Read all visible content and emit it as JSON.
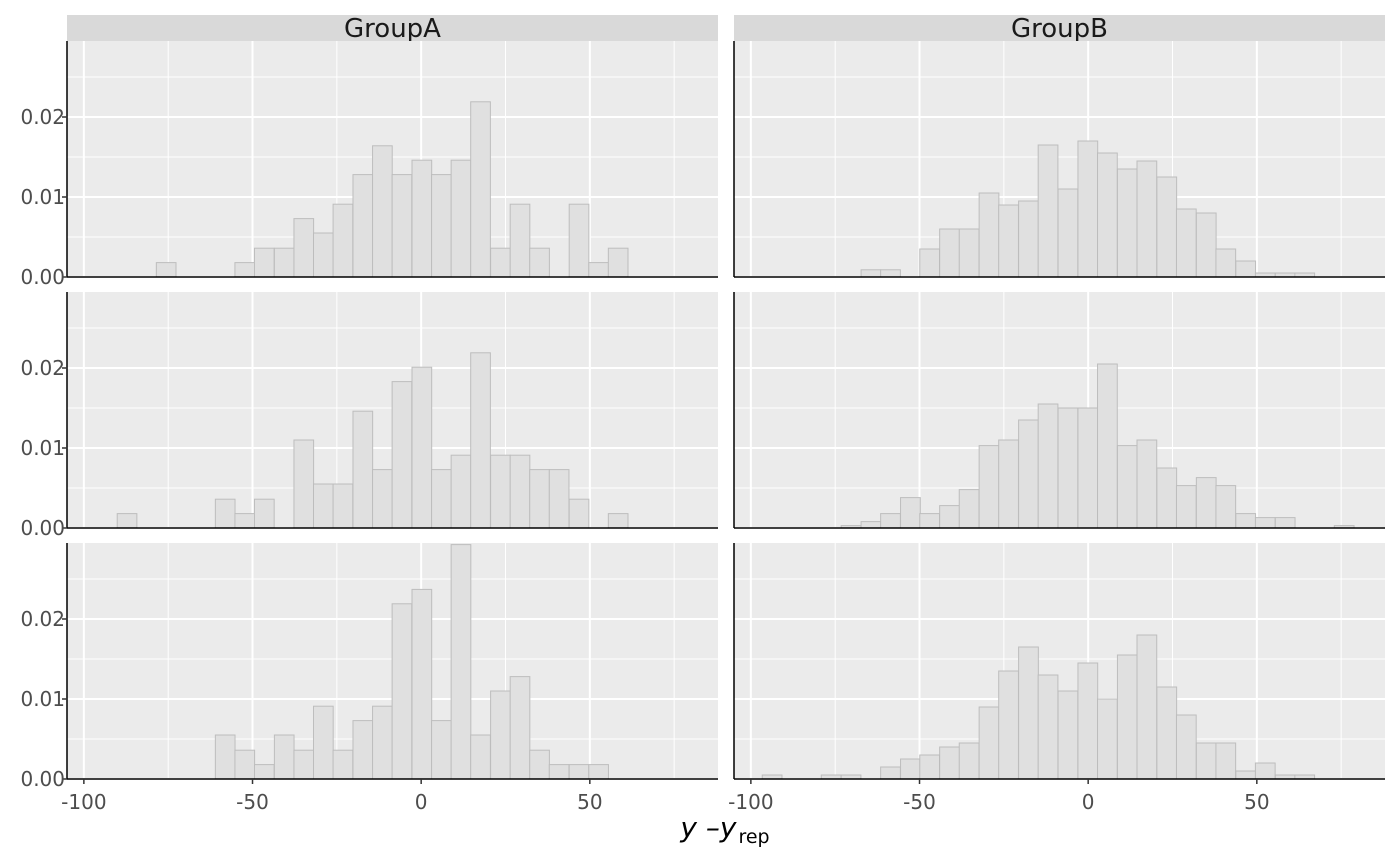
{
  "chart_data": {
    "type": "bar",
    "layout": "facet grid: 3 rows x 2 columns",
    "columns": [
      "GroupA",
      "GroupB"
    ],
    "xlabel": {
      "main": "y –y",
      "sub": "rep"
    },
    "xlim": [
      -105,
      88
    ],
    "ylim": [
      0,
      0.0295
    ],
    "x_ticks": [
      -100,
      -50,
      0,
      50
    ],
    "x_tick_labels": [
      "-100",
      "-50",
      "0",
      "50"
    ],
    "y_ticks": [
      0,
      0.01,
      0.02
    ],
    "y_tick_labels": [
      "0.00",
      "0.01",
      "0.02"
    ],
    "grid": true,
    "bar_fill": "#e0e0e0",
    "bar_stroke": "#bdbdbd",
    "panel_background": "#ebebeb",
    "strip_background": "#d9d9d9",
    "panels": [
      {
        "row": 0,
        "col": 0,
        "group": "GroupA",
        "binwidth": 5.83,
        "bins": [
          {
            "x": -75.6,
            "y": 0.0018
          },
          {
            "x": -52.3,
            "y": 0.0018
          },
          {
            "x": -46.5,
            "y": 0.0036
          },
          {
            "x": -40.6,
            "y": 0.0036
          },
          {
            "x": -34.8,
            "y": 0.0073
          },
          {
            "x": -29.0,
            "y": 0.0055
          },
          {
            "x": -23.2,
            "y": 0.0091
          },
          {
            "x": -17.3,
            "y": 0.0128
          },
          {
            "x": -11.5,
            "y": 0.0164
          },
          {
            "x": -5.7,
            "y": 0.0128
          },
          {
            "x": 0.2,
            "y": 0.0146
          },
          {
            "x": 6.0,
            "y": 0.0128
          },
          {
            "x": 11.8,
            "y": 0.0146
          },
          {
            "x": 17.6,
            "y": 0.0219
          },
          {
            "x": 23.5,
            "y": 0.0036
          },
          {
            "x": 29.3,
            "y": 0.0091
          },
          {
            "x": 35.1,
            "y": 0.0036
          },
          {
            "x": 46.8,
            "y": 0.0091
          },
          {
            "x": 52.6,
            "y": 0.0018
          },
          {
            "x": 58.4,
            "y": 0.0036
          }
        ]
      },
      {
        "row": 0,
        "col": 1,
        "group": "GroupB",
        "binwidth": 5.85,
        "bins": [
          {
            "x": -64.4,
            "y": 0.0009
          },
          {
            "x": -58.6,
            "y": 0.0009
          },
          {
            "x": -47.0,
            "y": 0.0035
          },
          {
            "x": -41.1,
            "y": 0.006
          },
          {
            "x": -35.3,
            "y": 0.006
          },
          {
            "x": -29.4,
            "y": 0.0105
          },
          {
            "x": -23.6,
            "y": 0.009
          },
          {
            "x": -17.7,
            "y": 0.0095
          },
          {
            "x": -11.9,
            "y": 0.0165
          },
          {
            "x": -6.0,
            "y": 0.011
          },
          {
            "x": -0.1,
            "y": 0.017
          },
          {
            "x": 5.7,
            "y": 0.0155
          },
          {
            "x": 11.6,
            "y": 0.0135
          },
          {
            "x": 17.4,
            "y": 0.0145
          },
          {
            "x": 23.3,
            "y": 0.0125
          },
          {
            "x": 29.1,
            "y": 0.0085
          },
          {
            "x": 35.0,
            "y": 0.008
          },
          {
            "x": 40.8,
            "y": 0.0035
          },
          {
            "x": 46.7,
            "y": 0.002
          },
          {
            "x": 52.5,
            "y": 0.0005
          },
          {
            "x": 58.4,
            "y": 0.0005
          },
          {
            "x": 64.2,
            "y": 0.0005
          }
        ]
      },
      {
        "row": 1,
        "col": 0,
        "group": "GroupA",
        "binwidth": 5.83,
        "bins": [
          {
            "x": -87.2,
            "y": 0.0018
          },
          {
            "x": -58.1,
            "y": 0.0036
          },
          {
            "x": -52.3,
            "y": 0.0018
          },
          {
            "x": -46.5,
            "y": 0.0036
          },
          {
            "x": -34.8,
            "y": 0.011
          },
          {
            "x": -29.0,
            "y": 0.0055
          },
          {
            "x": -23.2,
            "y": 0.0055
          },
          {
            "x": -17.3,
            "y": 0.0146
          },
          {
            "x": -11.5,
            "y": 0.0073
          },
          {
            "x": -5.7,
            "y": 0.0183
          },
          {
            "x": 0.2,
            "y": 0.0201
          },
          {
            "x": 6.0,
            "y": 0.0073
          },
          {
            "x": 11.8,
            "y": 0.0091
          },
          {
            "x": 17.6,
            "y": 0.0219
          },
          {
            "x": 23.5,
            "y": 0.0091
          },
          {
            "x": 29.3,
            "y": 0.0091
          },
          {
            "x": 35.1,
            "y": 0.0073
          },
          {
            "x": 40.9,
            "y": 0.0073
          },
          {
            "x": 46.8,
            "y": 0.0036
          },
          {
            "x": 58.4,
            "y": 0.0018
          }
        ]
      },
      {
        "row": 1,
        "col": 1,
        "group": "GroupB",
        "binwidth": 5.85,
        "bins": [
          {
            "x": -70.3,
            "y": 0.0003
          },
          {
            "x": -64.4,
            "y": 0.0008
          },
          {
            "x": -58.6,
            "y": 0.0018
          },
          {
            "x": -52.7,
            "y": 0.0038
          },
          {
            "x": -47.0,
            "y": 0.0018
          },
          {
            "x": -41.1,
            "y": 0.0028
          },
          {
            "x": -35.3,
            "y": 0.0048
          },
          {
            "x": -29.4,
            "y": 0.0103
          },
          {
            "x": -23.6,
            "y": 0.011
          },
          {
            "x": -17.7,
            "y": 0.0135
          },
          {
            "x": -11.9,
            "y": 0.0155
          },
          {
            "x": -6.0,
            "y": 0.015
          },
          {
            "x": -0.1,
            "y": 0.015
          },
          {
            "x": 5.7,
            "y": 0.0205
          },
          {
            "x": 11.6,
            "y": 0.0103
          },
          {
            "x": 17.4,
            "y": 0.011
          },
          {
            "x": 23.3,
            "y": 0.0075
          },
          {
            "x": 29.1,
            "y": 0.0053
          },
          {
            "x": 35.0,
            "y": 0.0063
          },
          {
            "x": 40.8,
            "y": 0.0053
          },
          {
            "x": 46.7,
            "y": 0.0018
          },
          {
            "x": 52.5,
            "y": 0.0013
          },
          {
            "x": 58.4,
            "y": 0.0013
          },
          {
            "x": 75.9,
            "y": 0.0003
          }
        ]
      },
      {
        "row": 2,
        "col": 0,
        "group": "GroupA",
        "binwidth": 5.83,
        "bins": [
          {
            "x": -58.1,
            "y": 0.0055
          },
          {
            "x": -52.3,
            "y": 0.0036
          },
          {
            "x": -46.5,
            "y": 0.0018
          },
          {
            "x": -40.6,
            "y": 0.0055
          },
          {
            "x": -34.8,
            "y": 0.0036
          },
          {
            "x": -29.0,
            "y": 0.0091
          },
          {
            "x": -23.2,
            "y": 0.0036
          },
          {
            "x": -17.3,
            "y": 0.0073
          },
          {
            "x": -11.5,
            "y": 0.0091
          },
          {
            "x": -5.7,
            "y": 0.0219
          },
          {
            "x": 0.2,
            "y": 0.0237
          },
          {
            "x": 6.0,
            "y": 0.0073
          },
          {
            "x": 11.8,
            "y": 0.0293
          },
          {
            "x": 17.6,
            "y": 0.0055
          },
          {
            "x": 23.5,
            "y": 0.011
          },
          {
            "x": 29.3,
            "y": 0.0128
          },
          {
            "x": 35.1,
            "y": 0.0036
          },
          {
            "x": 40.9,
            "y": 0.0018
          },
          {
            "x": 46.8,
            "y": 0.0018
          },
          {
            "x": 52.6,
            "y": 0.0018
          }
        ]
      },
      {
        "row": 2,
        "col": 1,
        "group": "GroupB",
        "binwidth": 5.85,
        "bins": [
          {
            "x": -93.7,
            "y": 0.0005
          },
          {
            "x": -76.2,
            "y": 0.0005
          },
          {
            "x": -70.3,
            "y": 0.0005
          },
          {
            "x": -58.6,
            "y": 0.0015
          },
          {
            "x": -52.7,
            "y": 0.0025
          },
          {
            "x": -47.0,
            "y": 0.003
          },
          {
            "x": -41.1,
            "y": 0.004
          },
          {
            "x": -35.3,
            "y": 0.0045
          },
          {
            "x": -29.4,
            "y": 0.009
          },
          {
            "x": -23.6,
            "y": 0.0135
          },
          {
            "x": -17.7,
            "y": 0.0165
          },
          {
            "x": -11.9,
            "y": 0.013
          },
          {
            "x": -6.0,
            "y": 0.011
          },
          {
            "x": -0.1,
            "y": 0.0145
          },
          {
            "x": 5.7,
            "y": 0.01
          },
          {
            "x": 11.6,
            "y": 0.0155
          },
          {
            "x": 17.4,
            "y": 0.018
          },
          {
            "x": 23.3,
            "y": 0.0115
          },
          {
            "x": 29.1,
            "y": 0.008
          },
          {
            "x": 35.0,
            "y": 0.0045
          },
          {
            "x": 40.8,
            "y": 0.0045
          },
          {
            "x": 46.7,
            "y": 0.001
          },
          {
            "x": 52.5,
            "y": 0.002
          },
          {
            "x": 58.4,
            "y": 0.0005
          },
          {
            "x": 64.2,
            "y": 0.0005
          }
        ]
      }
    ]
  }
}
